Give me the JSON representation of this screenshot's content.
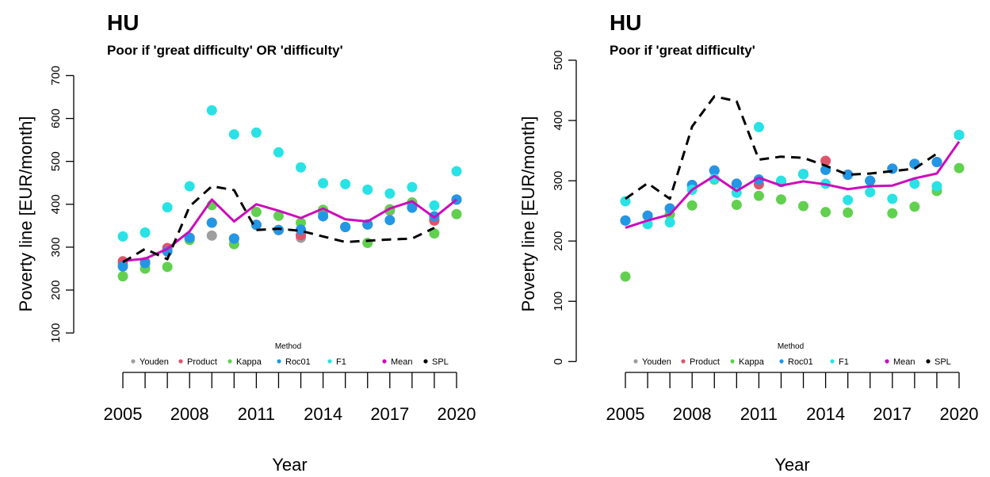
{
  "chart_data": [
    {
      "type": "line",
      "title": "HU",
      "subtitle": "Poor if 'great difficulty' OR 'difficulty'",
      "x_label": "Year",
      "y_label": "Poverty line [EUR/month]",
      "legend_title": "Method",
      "x": [
        2005,
        2006,
        2007,
        2008,
        2009,
        2010,
        2011,
        2012,
        2013,
        2014,
        2015,
        2016,
        2017,
        2018,
        2019,
        2020
      ],
      "xlim": [
        2005,
        2020
      ],
      "xticks": [
        2005,
        2008,
        2011,
        2014,
        2017,
        2020
      ],
      "ylim": [
        8,
        710
      ],
      "yticks": [
        100,
        200,
        300,
        400,
        500,
        600,
        700
      ],
      "series": [
        {
          "name": "Youden",
          "color": "#9e9e9e",
          "mode": "markers",
          "values": [
            260,
            265,
            295,
            320,
            327,
            320,
            352,
            340,
            322,
            380,
            347,
            353,
            385,
            400,
            365,
            411
          ]
        },
        {
          "name": "Product",
          "color": "#df536b",
          "mode": "markers",
          "values": [
            267,
            265,
            298,
            322,
            357,
            320,
            352,
            340,
            328,
            387,
            347,
            353,
            388,
            404,
            362,
            411
          ]
        },
        {
          "name": "Kappa",
          "color": "#61d04f",
          "mode": "markers",
          "values": [
            232,
            250,
            254,
            317,
            398,
            307,
            382,
            373,
            357,
            387,
            347,
            310,
            388,
            404,
            332,
            377
          ]
        },
        {
          "name": "Roc01",
          "color": "#2297e6",
          "mode": "markers",
          "values": [
            255,
            263,
            290,
            322,
            357,
            320,
            352,
            340,
            341,
            372,
            347,
            353,
            363,
            392,
            372,
            411
          ]
        },
        {
          "name": "F1",
          "color": "#28e2e5",
          "mode": "markers",
          "values": [
            325,
            334,
            393,
            442,
            619,
            563,
            567,
            521,
            486,
            449,
            447,
            434,
            425,
            440,
            397,
            477
          ]
        },
        {
          "name": "Mean",
          "color": "#cd0bbc",
          "mode": "line",
          "values": [
            268,
            273,
            296,
            337,
            411,
            360,
            400,
            385,
            368,
            390,
            365,
            360,
            390,
            407,
            369,
            411
          ]
        },
        {
          "name": "SPL",
          "color": "#000000",
          "mode": "dashed",
          "values": [
            265,
            296,
            272,
            395,
            442,
            433,
            340,
            343,
            338,
            325,
            312,
            315,
            318,
            320,
            345,
            null
          ]
        }
      ]
    },
    {
      "type": "line",
      "title": "HU",
      "subtitle": "Poor if 'great difficulty'",
      "x_label": "Year",
      "y_label": "Poverty line [EUR/month]",
      "legend_title": "Method",
      "x": [
        2005,
        2006,
        2007,
        2008,
        2009,
        2010,
        2011,
        2012,
        2013,
        2014,
        2015,
        2016,
        2017,
        2018,
        2019,
        2020
      ],
      "xlim": [
        2005,
        2020
      ],
      "xticks": [
        2005,
        2008,
        2011,
        2014,
        2017,
        2020
      ],
      "ylim": [
        -18,
        500
      ],
      "yticks": [
        0,
        100,
        200,
        300,
        400,
        500
      ],
      "series": [
        {
          "name": "Youden",
          "color": "#9e9e9e",
          "mode": "markers",
          "values": [
            234,
            242,
            254,
            293,
            317,
            295,
            302,
            298,
            311,
            318,
            310,
            300,
            320,
            328,
            331,
            376
          ]
        },
        {
          "name": "Product",
          "color": "#df536b",
          "mode": "markers",
          "values": [
            234,
            242,
            254,
            293,
            317,
            295,
            294,
            298,
            311,
            333,
            310,
            300,
            320,
            328,
            331,
            376
          ]
        },
        {
          "name": "Kappa",
          "color": "#61d04f",
          "mode": "markers",
          "values": [
            141,
            242,
            244,
            259,
            302,
            260,
            275,
            269,
            258,
            248,
            247,
            300,
            246,
            257,
            283,
            321
          ]
        },
        {
          "name": "Roc01",
          "color": "#2297e6",
          "mode": "markers",
          "values": [
            234,
            242,
            254,
            293,
            317,
            295,
            302,
            298,
            311,
            318,
            310,
            300,
            320,
            328,
            331,
            376
          ]
        },
        {
          "name": "F1",
          "color": "#28e2e5",
          "mode": "markers",
          "values": [
            266,
            228,
            231,
            285,
            303,
            280,
            389,
            300,
            311,
            295,
            268,
            281,
            270,
            295,
            291,
            376
          ]
        },
        {
          "name": "Mean",
          "color": "#cd0bbc",
          "mode": "line",
          "values": [
            222,
            234,
            244,
            285,
            308,
            283,
            305,
            292,
            299,
            294,
            286,
            291,
            292,
            304,
            312,
            365
          ]
        },
        {
          "name": "SPL",
          "color": "#000000",
          "mode": "dashed",
          "values": [
            270,
            296,
            270,
            390,
            440,
            432,
            335,
            340,
            338,
            325,
            310,
            312,
            316,
            320,
            345,
            null
          ]
        }
      ]
    }
  ]
}
